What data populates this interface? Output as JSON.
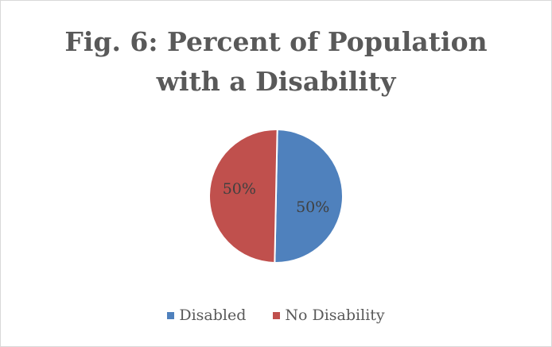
{
  "chart_data": {
    "type": "pie",
    "title": "Fig. 6: Percent of Population with a Disability",
    "title_lines": [
      "Fig. 6: Percent of Population",
      "with a Disability"
    ],
    "categories": [
      "Disabled",
      "No Disability"
    ],
    "values": [
      50,
      50
    ],
    "data_labels": [
      "50%",
      "50%"
    ],
    "colors": [
      "#4f81bd",
      "#c0504d"
    ],
    "legend_position": "bottom"
  }
}
